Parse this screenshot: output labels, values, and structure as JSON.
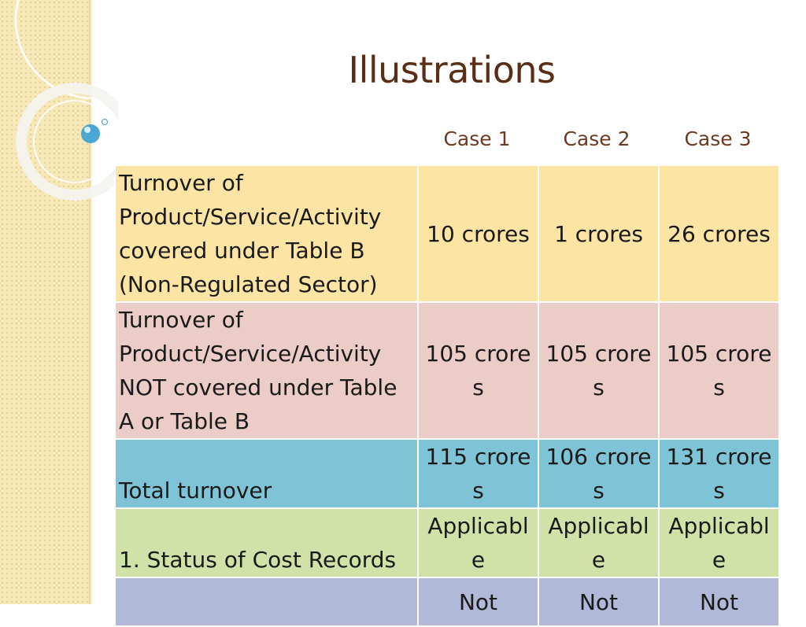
{
  "slide": {
    "title": "Illustrations"
  },
  "table": {
    "case_headers": [
      "Case 1",
      "Case 2",
      "Case 3"
    ],
    "rows": [
      {
        "label": "Turnover of Product/Service/Activity covered under Table B (Non-Regulated Sector)",
        "values": [
          "10 crores",
          "1 crores",
          "26 crores"
        ],
        "color": "#fce4a4"
      },
      {
        "label": "Turnover of Product/Service/Activity NOT covered under Table A or Table B",
        "values": [
          "105 crores",
          "105 crores",
          "105 crores"
        ],
        "color": "#ecccc6"
      },
      {
        "label": "Total turnover",
        "values": [
          "115 crores",
          "106 crores",
          "131 crores"
        ],
        "color": "#7fc3d7"
      },
      {
        "label": "1. Status of Cost Records",
        "values": [
          "Applicable",
          "Applicable",
          "Applicable"
        ],
        "color": "#d0e2a8"
      },
      {
        "label": "",
        "values": [
          "Not",
          "Not",
          "Not"
        ],
        "color": "#b0b9d8"
      }
    ]
  },
  "theme": {
    "title_color": "#5a2d17",
    "side_strip_color": "#f7e8b8"
  }
}
